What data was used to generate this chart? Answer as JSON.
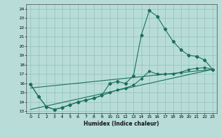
{
  "xlabel": "Humidex (Indice chaleur)",
  "xlim": [
    -0.5,
    23.5
  ],
  "ylim": [
    12.8,
    24.5
  ],
  "yticks": [
    13,
    14,
    15,
    16,
    17,
    18,
    19,
    20,
    21,
    22,
    23,
    24
  ],
  "xticks": [
    0,
    1,
    2,
    3,
    4,
    5,
    6,
    7,
    8,
    9,
    10,
    11,
    12,
    13,
    14,
    15,
    16,
    17,
    18,
    19,
    20,
    21,
    22,
    23
  ],
  "bg_color": "#b8ddd8",
  "grid_color": "#90c0bc",
  "line_color": "#1a6e60",
  "line1_x": [
    0,
    1,
    2,
    3,
    4,
    5,
    6,
    7,
    8,
    9,
    10,
    11,
    12,
    13,
    14,
    15,
    16,
    17,
    18,
    19,
    20,
    21,
    22,
    23
  ],
  "line1_y": [
    15.9,
    14.6,
    13.5,
    13.2,
    13.4,
    13.7,
    14.0,
    14.2,
    14.4,
    14.7,
    16.0,
    16.2,
    16.0,
    16.8,
    21.2,
    23.8,
    23.2,
    21.8,
    20.5,
    19.6,
    19.0,
    18.9,
    18.5,
    17.5
  ],
  "line2_x": [
    0,
    1,
    2,
    3,
    4,
    5,
    6,
    7,
    8,
    9,
    10,
    11,
    12,
    13,
    14,
    15,
    16,
    17,
    18,
    19,
    20,
    21,
    22,
    23
  ],
  "line2_y": [
    15.9,
    14.6,
    13.5,
    13.2,
    13.4,
    13.7,
    14.0,
    14.2,
    14.4,
    14.7,
    15.0,
    15.3,
    15.5,
    15.8,
    16.5,
    17.3,
    17.0,
    17.0,
    17.0,
    17.2,
    17.5,
    17.6,
    17.7,
    17.5
  ],
  "line3_x": [
    0,
    23
  ],
  "line3_y": [
    13.2,
    17.5
  ],
  "line4_x": [
    0,
    23
  ],
  "line4_y": [
    15.5,
    17.5
  ]
}
